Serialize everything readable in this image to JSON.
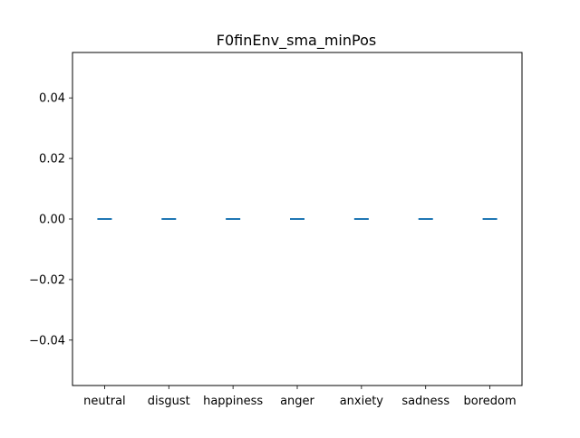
{
  "chart_data": {
    "type": "scatter",
    "title": "F0finEnv_sma_minPos",
    "xlabel": "",
    "ylabel": "",
    "categories": [
      "neutral",
      "disgust",
      "happiness",
      "anger",
      "anxiety",
      "sadness",
      "boredom"
    ],
    "values": [
      0.0,
      0.0,
      0.0,
      0.0,
      0.0,
      0.0,
      0.0
    ],
    "marker": "horizontal-dash",
    "ylim": [
      -0.055,
      0.055
    ],
    "yticks": [
      -0.04,
      -0.02,
      0.0,
      0.02,
      0.04
    ],
    "ytick_labels": [
      "−0.04",
      "−0.02",
      "0.00",
      "0.02",
      "0.04"
    ],
    "grid": false,
    "legend": "none",
    "colors": {
      "marker": "#1f77b4",
      "axes": "#000000",
      "background": "#ffffff"
    }
  }
}
